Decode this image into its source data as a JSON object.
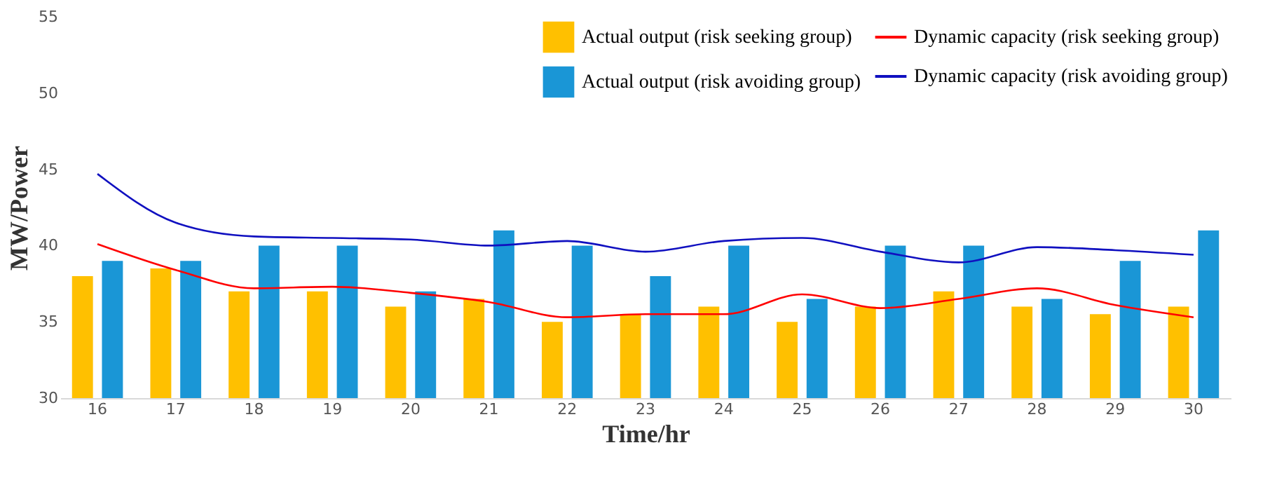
{
  "chart_data": {
    "type": "bar",
    "xlabel": "Time/hr",
    "ylabel": "MW/Power",
    "categories": [
      "16",
      "17",
      "18",
      "19",
      "20",
      "21",
      "22",
      "23",
      "24",
      "25",
      "26",
      "27",
      "28",
      "29",
      "30"
    ],
    "series": [
      {
        "name": "Actual output (risk seeking group)",
        "color": "#ffc000",
        "values": [
          38,
          38.5,
          37,
          37,
          36,
          36.5,
          35,
          35.5,
          36,
          35,
          36,
          37,
          36,
          35.5,
          36
        ]
      },
      {
        "name": "Actual output (risk avoiding group)",
        "color": "#1a96d6",
        "values": [
          39,
          39,
          40,
          40,
          37,
          41,
          40,
          38,
          40,
          36.5,
          40,
          40,
          36.5,
          39,
          41
        ]
      },
      {
        "name": "Dynamic capacity (risk seeking group)",
        "type": "line",
        "color": "#ff0000",
        "values": [
          40.1,
          38.4,
          37.2,
          37.3,
          36.9,
          36.3,
          35.3,
          35.5,
          35.5,
          36.8,
          35.9,
          36.5,
          37.2,
          36.1,
          35.3
        ]
      },
      {
        "name": "Dynamic capacity (risk avoiding group)",
        "type": "line",
        "color": "#1010c0",
        "values": [
          44.7,
          41.5,
          40.6,
          40.5,
          40.4,
          40.0,
          40.3,
          39.6,
          40.3,
          40.5,
          39.6,
          38.9,
          39.9,
          39.7,
          39.4
        ]
      }
    ],
    "ylim": [
      30,
      55
    ],
    "yticks": [
      30,
      35,
      40,
      45,
      50,
      55
    ],
    "grid": false,
    "legend": "top right"
  }
}
